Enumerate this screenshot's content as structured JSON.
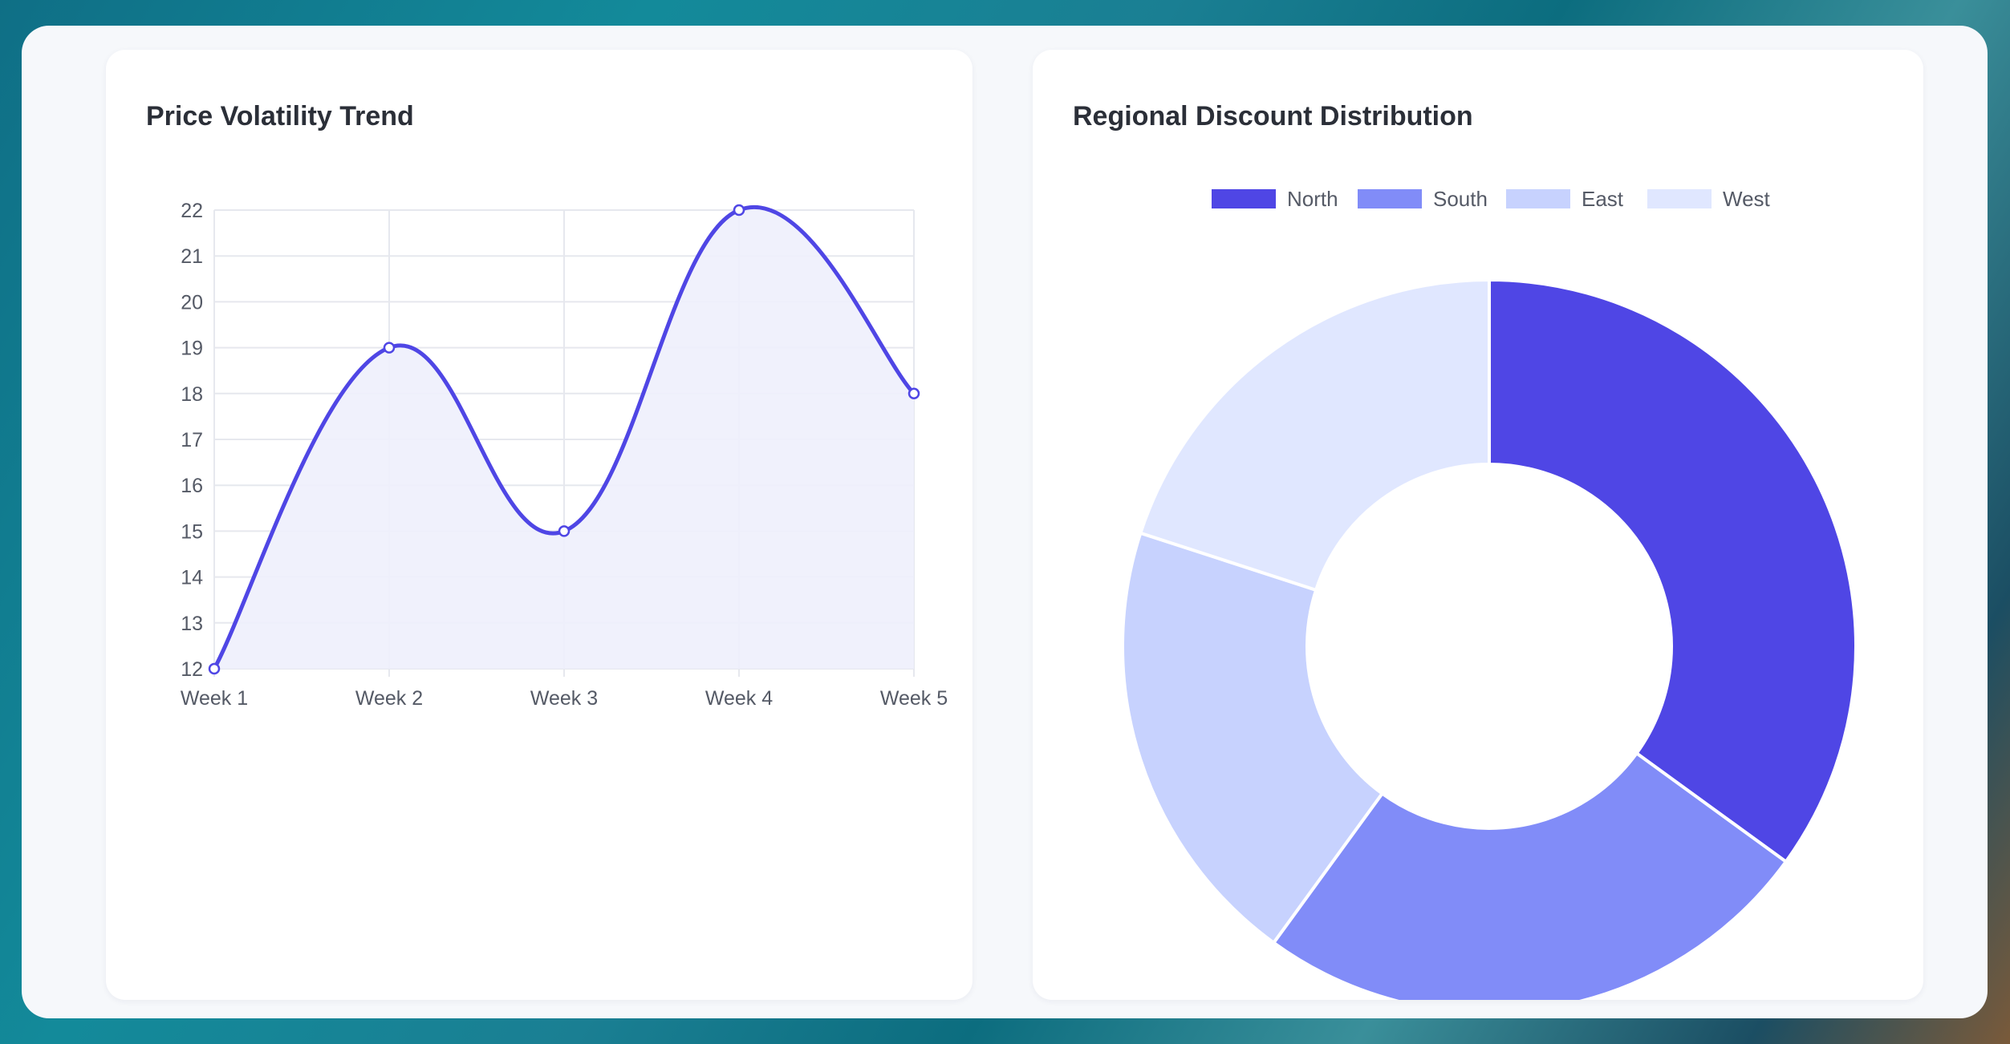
{
  "cards": [
    {
      "title": "Price Volatility Trend"
    },
    {
      "title": "Regional Discount Distribution"
    }
  ],
  "chart_data": [
    {
      "type": "line",
      "title": "Price Volatility Trend",
      "categories": [
        "Week 1",
        "Week 2",
        "Week 3",
        "Week 4",
        "Week 5"
      ],
      "series": [
        {
          "values": [
            12,
            19,
            15,
            22,
            18
          ]
        }
      ],
      "ylim": [
        12,
        22
      ],
      "yticks": [
        "12",
        "13",
        "14",
        "15",
        "16",
        "17",
        "18",
        "19",
        "20",
        "21",
        "22"
      ],
      "grid": true,
      "fill": true,
      "colors": {
        "line": "#4f46e5",
        "fill": "#eef0fc",
        "grid": "#e6e8ee"
      }
    },
    {
      "type": "pie",
      "donut": true,
      "title": "Regional Discount Distribution",
      "categories": [
        "North",
        "South",
        "East",
        "West"
      ],
      "values": [
        35,
        25,
        20,
        20
      ],
      "legend": "top",
      "colors": [
        "#4f46e5",
        "#818cf8",
        "#c7d2fe",
        "#e0e7ff"
      ]
    }
  ]
}
